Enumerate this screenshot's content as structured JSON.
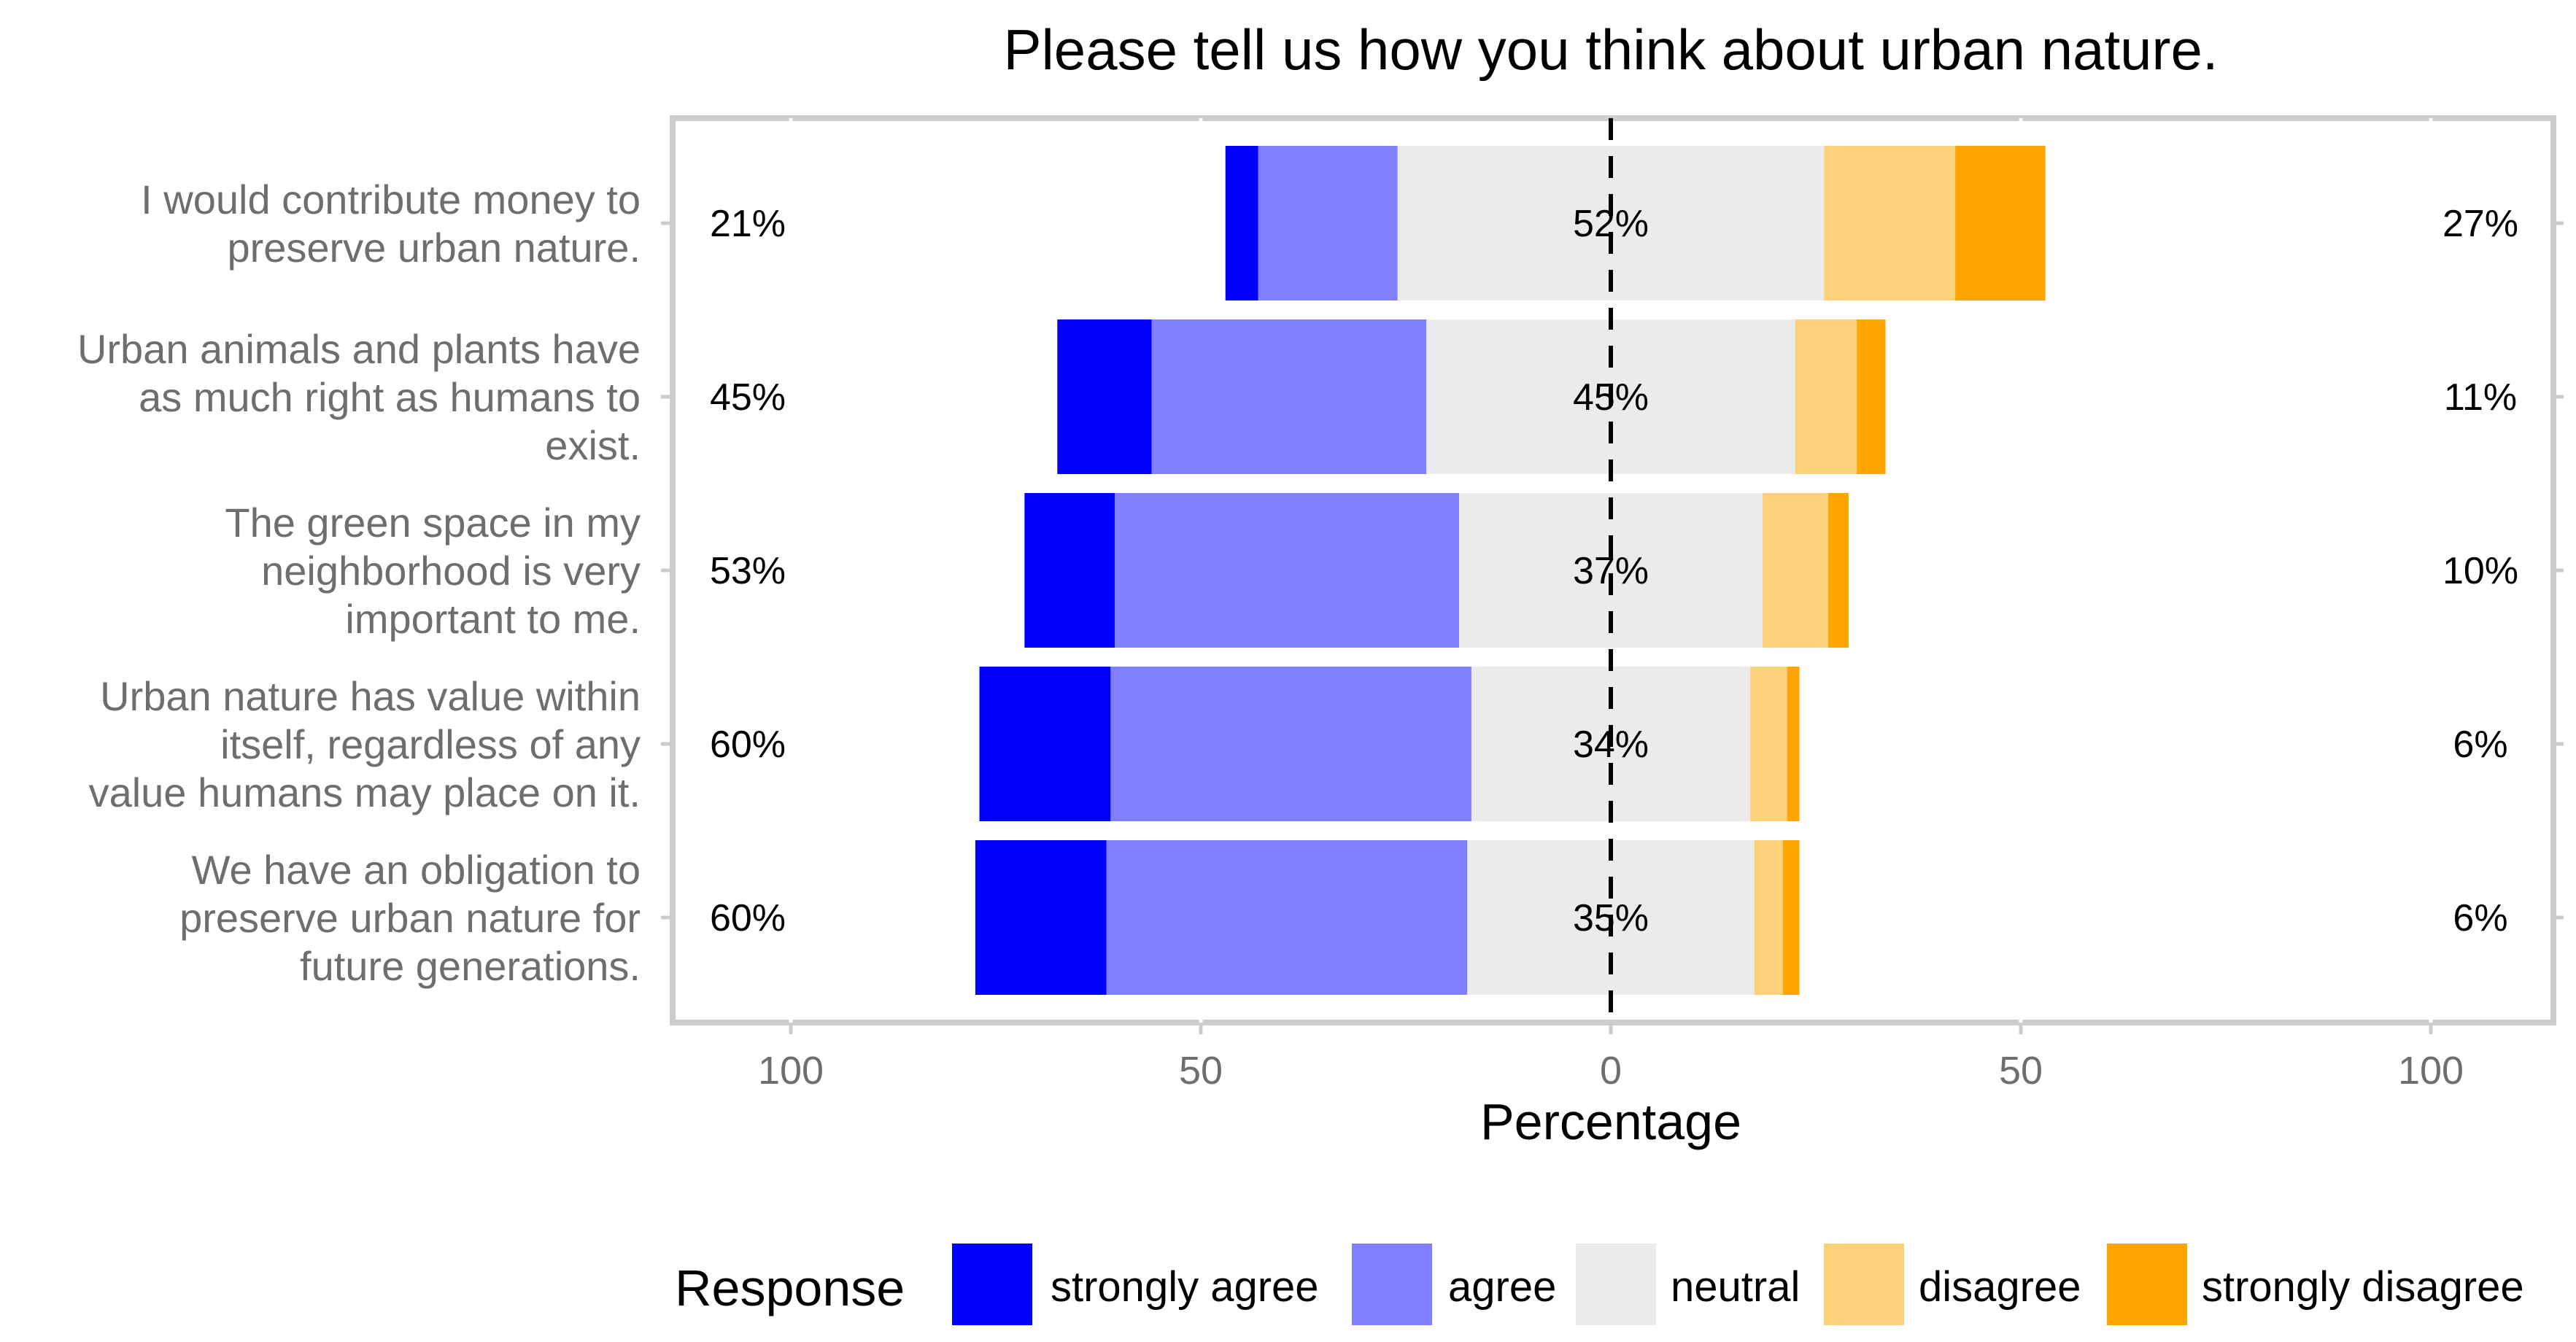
{
  "chart_data": {
    "type": "bar",
    "orientation": "horizontal-diverging-stacked",
    "title": "Please tell us how you think about urban nature.",
    "xlabel": "Percentage",
    "ylabel": "",
    "xlim": [
      -100,
      100
    ],
    "x_ticks": [
      -100,
      -50,
      0,
      50,
      100
    ],
    "x_tick_labels": [
      "100",
      "50",
      "0",
      "50",
      "100"
    ],
    "grid": true,
    "legend_position": "bottom",
    "legend_title": "Response",
    "series": [
      {
        "name": "strongly agree",
        "color": "#0000ff",
        "values": [
          4,
          11.5,
          11,
          16,
          16
        ]
      },
      {
        "name": "agree",
        "color": "#8080ff",
        "values": [
          17,
          33.5,
          42,
          44,
          44
        ]
      },
      {
        "name": "neutral",
        "color": "#ebebeb",
        "values": [
          52,
          45,
          37,
          34,
          35
        ]
      },
      {
        "name": "disagree",
        "color": "#fdd17a",
        "values": [
          16,
          7.5,
          8,
          4.5,
          3.5
        ]
      },
      {
        "name": "strongly disagree",
        "color": "#ffa500",
        "values": [
          11,
          3.5,
          2.5,
          1.5,
          2
        ]
      }
    ],
    "categories": [
      "I would contribute money to preserve urban nature.",
      "Urban animals and plants have as much right as humans to exist.",
      "The green space in my neighborhood is very important to me.",
      "Urban nature has value within itself, regardless of any value humans may place on it.",
      "We have an obligation to preserve urban nature for future generations."
    ],
    "category_label_lines": [
      [
        "I would contribute money to",
        "preserve urban nature."
      ],
      [
        "Urban animals and plants have",
        "as much right as humans to",
        "exist."
      ],
      [
        "The green space in my",
        "neighborhood is very",
        "important to me."
      ],
      [
        "Urban nature has value within",
        "itself, regardless of any",
        "value humans may place on it."
      ],
      [
        "We have an obligation to",
        "preserve urban nature for",
        "future generations."
      ]
    ],
    "left_percent_labels": [
      "21%",
      "45%",
      "53%",
      "60%",
      "60%"
    ],
    "center_percent_labels": [
      "52%",
      "45%",
      "37%",
      "34%",
      "35%"
    ],
    "right_percent_labels": [
      "27%",
      "11%",
      "10%",
      "6%",
      "6%"
    ]
  }
}
